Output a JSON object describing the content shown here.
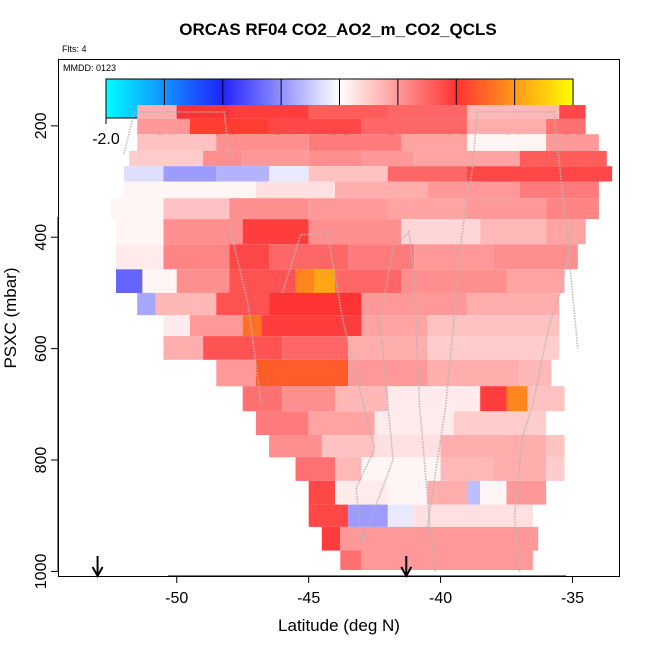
{
  "chart_data": {
    "type": "heatmap",
    "title": "ORCAS RF04 CO2_AO2_m_CO2_QCLS",
    "flights_note": "Flts: 4",
    "date_note": "MMDD: 0123",
    "xlabel": "Latitude (deg N)",
    "ylabel": "PSXC (mbar)",
    "xlim": [
      -54.5,
      -33.2
    ],
    "ylim": [
      1010,
      80
    ],
    "x_ticks": [
      -50,
      -45,
      -40,
      -35
    ],
    "y_ticks": [
      200,
      400,
      600,
      800,
      1000
    ],
    "colorbar": {
      "min": -2.0,
      "max": 2.0,
      "ticks": [
        "-2.0",
        "-1.5",
        "-1.0",
        "-0.5",
        "0.0",
        "0.5",
        "1.0",
        "1.5",
        "2.0"
      ],
      "colors": [
        {
          "v": -2.0,
          "c": "#00ffff"
        },
        {
          "v": -1.0,
          "c": "#2222ff"
        },
        {
          "v": 0.0,
          "c": "#ffffff"
        },
        {
          "v": 1.0,
          "c": "#ff3333"
        },
        {
          "v": 2.0,
          "c": "#ffff00"
        }
      ]
    },
    "layers": [
      {
        "p": 175,
        "cells": [
          [
            -51.5,
            -50.0,
            0.4
          ],
          [
            -50.0,
            -48.0,
            1.0
          ],
          [
            -48.0,
            -45.0,
            0.95
          ],
          [
            -45.0,
            -42.0,
            0.8
          ],
          [
            -42.0,
            -39.0,
            0.75
          ],
          [
            -39.0,
            -35.5,
            0.35
          ],
          [
            -35.5,
            -34.5,
            0.9
          ]
        ]
      },
      {
        "p": 200,
        "cells": [
          [
            -51.5,
            -49.5,
            0.5
          ],
          [
            -49.5,
            -46.5,
            1.05
          ],
          [
            -46.5,
            -43.0,
            0.9
          ],
          [
            -43.0,
            -39.0,
            0.75
          ],
          [
            -39.0,
            -36.0,
            0.4
          ],
          [
            -36.0,
            -34.5,
            0.7
          ]
        ]
      },
      {
        "p": 230,
        "cells": [
          [
            -51.5,
            -48.5,
            0.3
          ],
          [
            -48.5,
            -45.0,
            0.55
          ],
          [
            -45.0,
            -41.5,
            0.65
          ],
          [
            -41.5,
            -39.0,
            0.45
          ],
          [
            -39.0,
            -36.0,
            0.05
          ],
          [
            -36.0,
            -34.0,
            0.5
          ]
        ]
      },
      {
        "p": 260,
        "cells": [
          [
            -51.8,
            -49.0,
            0.25
          ],
          [
            -49.0,
            -47.5,
            0.55
          ],
          [
            -47.5,
            -45.0,
            0.5
          ],
          [
            -45.0,
            -43.0,
            0.55
          ],
          [
            -43.0,
            -41.0,
            0.5
          ],
          [
            -41.0,
            -37.0,
            0.45
          ],
          [
            -37.0,
            -33.7,
            0.8
          ]
        ]
      },
      {
        "p": 285,
        "cells": [
          [
            -52.0,
            -50.5,
            -0.15
          ],
          [
            -50.5,
            -48.5,
            -0.45
          ],
          [
            -48.5,
            -46.5,
            -0.35
          ],
          [
            -46.5,
            -45.0,
            -0.1
          ],
          [
            -45.0,
            -42.0,
            0.3
          ],
          [
            -42.0,
            -39.0,
            0.75
          ],
          [
            -39.0,
            -33.5,
            0.9
          ]
        ]
      },
      {
        "p": 315,
        "cells": [
          [
            -52.0,
            -47.0,
            0.05
          ],
          [
            -47.0,
            -44.0,
            0.15
          ],
          [
            -44.0,
            -40.5,
            0.4
          ],
          [
            -40.5,
            -37.0,
            0.5
          ],
          [
            -37.0,
            -34.0,
            0.65
          ]
        ]
      },
      {
        "p": 345,
        "cells": [
          [
            -52.5,
            -50.5,
            0.05
          ],
          [
            -50.5,
            -48.0,
            0.3
          ],
          [
            -48.0,
            -45.0,
            0.55
          ],
          [
            -45.0,
            -42.0,
            0.5
          ],
          [
            -42.0,
            -39.0,
            0.45
          ],
          [
            -39.0,
            -36.0,
            0.5
          ],
          [
            -36.0,
            -34.0,
            0.6
          ]
        ]
      },
      {
        "p": 390,
        "cells": [
          [
            -52.3,
            -50.5,
            0.05
          ],
          [
            -50.5,
            -47.5,
            0.55
          ],
          [
            -47.5,
            -45.0,
            0.95
          ],
          [
            -45.0,
            -41.5,
            0.55
          ],
          [
            -41.5,
            -38.5,
            0.2
          ],
          [
            -38.5,
            -36.0,
            0.35
          ],
          [
            -36.0,
            -34.5,
            0.45
          ]
        ]
      },
      {
        "p": 435,
        "cells": [
          [
            -52.3,
            -50.5,
            0.1
          ],
          [
            -50.5,
            -48.0,
            0.6
          ],
          [
            -48.0,
            -46.5,
            0.9
          ],
          [
            -46.5,
            -43.5,
            0.75
          ],
          [
            -43.5,
            -41.0,
            0.65
          ],
          [
            -41.0,
            -38.0,
            0.5
          ],
          [
            -38.0,
            -34.8,
            0.55
          ]
        ]
      },
      {
        "p": 480,
        "cells": [
          [
            -52.3,
            -51.3,
            -0.7
          ],
          [
            -51.3,
            -50.0,
            0.05
          ],
          [
            -50.0,
            -48.0,
            0.55
          ],
          [
            -48.0,
            -45.5,
            0.85
          ],
          [
            -45.5,
            -44.8,
            1.4
          ],
          [
            -44.8,
            -44.0,
            1.55
          ],
          [
            -44.0,
            -41.5,
            0.75
          ],
          [
            -41.5,
            -37.5,
            0.55
          ],
          [
            -37.5,
            -35.3,
            0.45
          ]
        ]
      },
      {
        "p": 520,
        "cells": [
          [
            -51.5,
            -50.8,
            -0.4
          ],
          [
            -50.8,
            -48.5,
            0.35
          ],
          [
            -48.5,
            -46.5,
            0.85
          ],
          [
            -46.5,
            -43.0,
            1.0
          ],
          [
            -43.0,
            -39.0,
            0.5
          ],
          [
            -39.0,
            -35.5,
            0.4
          ]
        ]
      },
      {
        "p": 560,
        "cells": [
          [
            -50.5,
            -49.5,
            0.1
          ],
          [
            -49.5,
            -47.5,
            0.5
          ],
          [
            -47.5,
            -46.8,
            1.3
          ],
          [
            -46.8,
            -43.0,
            0.95
          ],
          [
            -43.0,
            -40.5,
            0.45
          ],
          [
            -40.5,
            -35.5,
            0.3
          ]
        ]
      },
      {
        "p": 595,
        "cells": [
          [
            -50.5,
            -49.0,
            0.4
          ],
          [
            -49.0,
            -46.0,
            0.85
          ],
          [
            -46.0,
            -43.5,
            0.75
          ],
          [
            -43.5,
            -40.5,
            0.4
          ],
          [
            -40.5,
            -35.5,
            0.25
          ]
        ]
      },
      {
        "p": 645,
        "cells": [
          [
            -48.5,
            -47.0,
            0.5
          ],
          [
            -47.0,
            -43.5,
            1.2
          ],
          [
            -43.5,
            -40.5,
            0.5
          ],
          [
            -40.5,
            -37.0,
            0.4
          ],
          [
            -37.0,
            -35.8,
            0.35
          ]
        ]
      },
      {
        "p": 690,
        "cells": [
          [
            -47.5,
            -46.0,
            0.7
          ],
          [
            -46.0,
            -44.0,
            0.55
          ],
          [
            -44.0,
            -42.0,
            0.35
          ],
          [
            -42.0,
            -38.5,
            0.1
          ],
          [
            -38.5,
            -37.5,
            0.95
          ],
          [
            -37.5,
            -36.7,
            1.4
          ],
          [
            -36.7,
            -35.3,
            0.3
          ]
        ]
      },
      {
        "p": 735,
        "cells": [
          [
            -47.0,
            -45.0,
            0.65
          ],
          [
            -45.0,
            -42.5,
            0.45
          ],
          [
            -42.5,
            -39.5,
            0.1
          ],
          [
            -39.5,
            -36.0,
            0.25
          ]
        ]
      },
      {
        "p": 775,
        "cells": [
          [
            -46.5,
            -44.5,
            0.55
          ],
          [
            -44.5,
            -42.5,
            0.3
          ],
          [
            -42.5,
            -40.0,
            0.15
          ],
          [
            -40.0,
            -36.0,
            0.4
          ],
          [
            -36.0,
            -35.3,
            0.3
          ]
        ]
      },
      {
        "p": 815,
        "cells": [
          [
            -45.5,
            -44.0,
            0.7
          ],
          [
            -44.0,
            -43.0,
            0.35
          ],
          [
            -43.0,
            -40.0,
            0.05
          ],
          [
            -40.0,
            -38.0,
            0.35
          ],
          [
            -38.0,
            -36.0,
            0.4
          ],
          [
            -36.0,
            -35.3,
            0.25
          ]
        ]
      },
      {
        "p": 860,
        "cells": [
          [
            -45.0,
            -44.0,
            0.9
          ],
          [
            -44.0,
            -42.0,
            0.1
          ],
          [
            -42.0,
            -40.5,
            0.05
          ],
          [
            -40.5,
            -39.0,
            0.4
          ],
          [
            -39.0,
            -38.5,
            -0.3
          ],
          [
            -38.5,
            -37.5,
            0.05
          ],
          [
            -37.5,
            -36.0,
            0.5
          ]
        ]
      },
      {
        "p": 900,
        "cells": [
          [
            -45.0,
            -43.5,
            0.9
          ],
          [
            -43.5,
            -42.0,
            -0.45
          ],
          [
            -42.0,
            -41.0,
            -0.1
          ],
          [
            -41.0,
            -36.5,
            0.15
          ]
        ]
      },
      {
        "p": 940,
        "cells": [
          [
            -44.5,
            -43.8,
            0.95
          ],
          [
            -43.8,
            -36.3,
            0.5
          ]
        ]
      },
      {
        "p": 985,
        "cells": [
          [
            -43.8,
            -43.0,
            0.7
          ],
          [
            -43.0,
            -36.5,
            0.5
          ]
        ]
      }
    ],
    "flight_tracks": [
      [
        [
          -52.0,
          250
        ],
        [
          -51.6,
          175
        ],
        [
          -49.5,
          175
        ],
        [
          -48.7,
          175
        ],
        [
          -48.2,
          175
        ],
        [
          -48.0,
          260
        ]
      ],
      [
        [
          -48.0,
          380
        ],
        [
          -47.3,
          520
        ],
        [
          -46.8,
          700
        ]
      ],
      [
        [
          -46.0,
          500
        ],
        [
          -45.3,
          395
        ],
        [
          -44.8,
          395
        ],
        [
          -44.3,
          390
        ],
        [
          -43.7,
          550
        ],
        [
          -42.5,
          780
        ],
        [
          -43.2,
          850
        ],
        [
          -43.0,
          950
        ],
        [
          -41.8,
          800
        ],
        [
          -42.3,
          550
        ],
        [
          -41.8,
          420
        ],
        [
          -41.2,
          390
        ],
        [
          -41.0,
          470
        ],
        [
          -40.8,
          700
        ],
        [
          -40.4,
          920
        ],
        [
          -40.2,
          1000
        ]
      ],
      [
        [
          -40.5,
          920
        ],
        [
          -39.8,
          700
        ],
        [
          -39.2,
          400
        ],
        [
          -39.0,
          330
        ],
        [
          -38.8,
          280
        ],
        [
          -38.6,
          175
        ],
        [
          -36.5,
          175
        ],
        [
          -35.7,
          175
        ],
        [
          -35.2,
          400
        ],
        [
          -34.8,
          600
        ]
      ],
      [
        [
          -37.0,
          1000
        ],
        [
          -37.2,
          900
        ],
        [
          -36.9,
          760
        ],
        [
          -36.5,
          700
        ],
        [
          -35.9,
          560
        ],
        [
          -35.4,
          490
        ],
        [
          -35.0,
          380
        ]
      ]
    ],
    "markers": [
      -53.0,
      -41.3
    ]
  }
}
